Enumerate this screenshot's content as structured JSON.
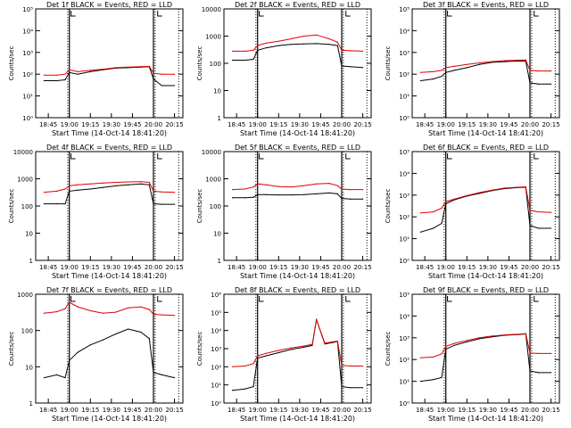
{
  "colors": {
    "events": "#000000",
    "lld": "#e00000",
    "axes": "#000000",
    "background": "#ffffff"
  },
  "x_ticks": [
    "18:45",
    "19:00",
    "19:15",
    "19:30",
    "19:45",
    "20:00",
    "20:15"
  ],
  "x_label": "Start Time (14-Oct-14 18:41:20)",
  "y_label": "Counts/sec",
  "chart_data": [
    {
      "type": "line",
      "title": "Det 1f BLACK = Events, RED = LLD",
      "ylog": true,
      "ylim": [
        1,
        100000
      ],
      "yticks": [
        [
          "10⁰",
          1
        ],
        [
          "10¹",
          10
        ],
        [
          "10²",
          100
        ],
        [
          "10³",
          1000
        ],
        [
          "10⁴",
          10000
        ],
        [
          "10⁵",
          100000
        ]
      ],
      "x": [
        18.7,
        18.85,
        18.95,
        19.0,
        19.1,
        19.25,
        19.4,
        19.55,
        19.7,
        19.85,
        19.95,
        20.0,
        20.1,
        20.25
      ],
      "series": [
        {
          "values": [
            50,
            50,
            55,
            120,
            100,
            130,
            160,
            190,
            200,
            210,
            220,
            60,
            30,
            30
          ]
        },
        {
          "values": [
            90,
            90,
            100,
            160,
            130,
            150,
            170,
            200,
            210,
            220,
            230,
            110,
            100,
            100
          ]
        }
      ]
    },
    {
      "type": "line",
      "title": "Det 2f BLACK = Events, RED = LLD",
      "ylog": true,
      "ylim": [
        1,
        10000
      ],
      "yticks": [
        [
          "1",
          1
        ],
        [
          "10",
          10
        ],
        [
          "100",
          100
        ],
        [
          "1000",
          1000
        ],
        [
          "10000",
          10000
        ]
      ],
      "x": [
        18.7,
        18.85,
        18.95,
        19.0,
        19.1,
        19.25,
        19.4,
        19.55,
        19.7,
        19.85,
        19.95,
        20.0,
        20.1,
        20.25
      ],
      "series": [
        {
          "values": [
            130,
            130,
            140,
            300,
            370,
            450,
            500,
            520,
            530,
            500,
            450,
            80,
            75,
            70
          ]
        },
        {
          "values": [
            280,
            280,
            300,
            450,
            550,
            650,
            800,
            1000,
            1100,
            800,
            600,
            300,
            290,
            280
          ]
        }
      ]
    },
    {
      "type": "line",
      "title": "Det 3f BLACK = Events, RED = LLD",
      "ylog": true,
      "ylim": [
        1,
        100000
      ],
      "yticks": [
        [
          "10⁰",
          1
        ],
        [
          "10¹",
          10
        ],
        [
          "10²",
          100
        ],
        [
          "10³",
          1000
        ],
        [
          "10⁴",
          10000
        ],
        [
          "10⁵",
          100000
        ]
      ],
      "x": [
        18.7,
        18.85,
        18.95,
        19.0,
        19.1,
        19.25,
        19.4,
        19.55,
        19.7,
        19.85,
        19.95,
        20.0,
        20.1,
        20.25
      ],
      "series": [
        {
          "values": [
            50,
            60,
            80,
            120,
            150,
            200,
            280,
            350,
            380,
            400,
            400,
            40,
            35,
            35
          ]
        },
        {
          "values": [
            120,
            130,
            150,
            200,
            230,
            280,
            330,
            380,
            420,
            440,
            450,
            150,
            140,
            140
          ]
        }
      ]
    },
    {
      "type": "line",
      "title": "Det 4f BLACK = Events, RED = LLD",
      "ylog": true,
      "ylim": [
        1,
        10000
      ],
      "yticks": [
        [
          "1",
          1
        ],
        [
          "10",
          10
        ],
        [
          "100",
          100
        ],
        [
          "1000",
          1000
        ],
        [
          "10000",
          10000
        ]
      ],
      "x": [
        18.7,
        18.85,
        18.95,
        19.0,
        19.1,
        19.25,
        19.4,
        19.55,
        19.7,
        19.85,
        19.95,
        20.0,
        20.1,
        20.25
      ],
      "series": [
        {
          "values": [
            120,
            120,
            120,
            350,
            380,
            420,
            480,
            550,
            600,
            650,
            600,
            120,
            115,
            115
          ]
        },
        {
          "values": [
            320,
            350,
            420,
            550,
            600,
            650,
            700,
            740,
            770,
            780,
            740,
            350,
            330,
            320
          ]
        }
      ]
    },
    {
      "type": "line",
      "title": "Det 5f BLACK = Events, RED = LLD",
      "ylog": true,
      "ylim": [
        1,
        10000
      ],
      "yticks": [
        [
          "1",
          1
        ],
        [
          "10",
          10
        ],
        [
          "100",
          100
        ],
        [
          "1000",
          1000
        ],
        [
          "10000",
          10000
        ]
      ],
      "x": [
        18.7,
        18.85,
        18.95,
        19.0,
        19.1,
        19.25,
        19.4,
        19.55,
        19.7,
        19.85,
        19.95,
        20.0,
        20.1,
        20.25
      ],
      "series": [
        {
          "values": [
            200,
            200,
            210,
            260,
            260,
            255,
            255,
            260,
            280,
            300,
            280,
            190,
            180,
            180
          ]
        },
        {
          "values": [
            400,
            420,
            500,
            650,
            600,
            520,
            500,
            560,
            650,
            680,
            560,
            420,
            400,
            400
          ]
        }
      ]
    },
    {
      "type": "line",
      "title": "Det 6f BLACK = Events, RED = LLD",
      "ylog": true,
      "ylim": [
        1,
        100000
      ],
      "yticks": [
        [
          "10⁰",
          1
        ],
        [
          "10¹",
          10
        ],
        [
          "10²",
          100
        ],
        [
          "10³",
          1000
        ],
        [
          "10⁴",
          10000
        ],
        [
          "10⁵",
          100000
        ]
      ],
      "x": [
        18.7,
        18.85,
        18.95,
        19.0,
        19.1,
        19.25,
        19.4,
        19.55,
        19.7,
        19.85,
        19.95,
        20.0,
        20.1,
        20.25
      ],
      "series": [
        {
          "values": [
            20,
            30,
            50,
            400,
            600,
            900,
            1200,
            1600,
            2000,
            2200,
            2300,
            40,
            30,
            30
          ]
        },
        {
          "values": [
            150,
            170,
            250,
            500,
            650,
            950,
            1300,
            1700,
            2100,
            2300,
            2400,
            200,
            170,
            160
          ]
        }
      ]
    },
    {
      "type": "line",
      "title": "Det 7f BLACK = Events, RED = LLD",
      "ylog": true,
      "ylim": [
        1,
        1000
      ],
      "yticks": [
        [
          "1",
          1
        ],
        [
          "10",
          10
        ],
        [
          "100",
          100
        ],
        [
          "1000",
          1000
        ]
      ],
      "x": [
        18.7,
        18.85,
        18.95,
        19.0,
        19.1,
        19.25,
        19.4,
        19.55,
        19.7,
        19.85,
        19.95,
        20.0,
        20.1,
        20.25
      ],
      "series": [
        {
          "values": [
            5,
            6,
            5,
            15,
            25,
            40,
            55,
            80,
            110,
            90,
            60,
            7,
            6,
            5
          ]
        },
        {
          "values": [
            300,
            330,
            400,
            600,
            450,
            350,
            300,
            320,
            420,
            450,
            380,
            280,
            270,
            260
          ]
        }
      ]
    },
    {
      "type": "line",
      "title": "Det 8f BLACK = Events, RED = LLD",
      "ylog": true,
      "ylim": [
        1,
        1000000
      ],
      "yticks": [
        [
          "10⁰",
          1
        ],
        [
          "10¹",
          10
        ],
        [
          "10²",
          100
        ],
        [
          "10³",
          1000
        ],
        [
          "10⁴",
          10000
        ],
        [
          "10⁵",
          100000
        ],
        [
          "10⁶",
          1000000
        ]
      ],
      "x": [
        18.7,
        18.85,
        18.95,
        19.0,
        19.1,
        19.25,
        19.4,
        19.55,
        19.65,
        19.7,
        19.8,
        19.9,
        19.95,
        20.0,
        20.1,
        20.25
      ],
      "series": [
        {
          "values": [
            5,
            6,
            8,
            300,
            400,
            600,
            900,
            1200,
            1500,
            40000,
            1800,
            2200,
            2500,
            8,
            7,
            7
          ]
        },
        {
          "values": [
            100,
            110,
            150,
            400,
            550,
            800,
            1100,
            1400,
            1700,
            40000,
            2000,
            2400,
            2600,
            120,
            110,
            110
          ]
        }
      ]
    },
    {
      "type": "line",
      "title": "Det 9f BLACK = Events, RED = LLD",
      "ylog": true,
      "ylim": [
        1,
        100000
      ],
      "yticks": [
        [
          "10⁰",
          1
        ],
        [
          "10¹",
          10
        ],
        [
          "10²",
          100
        ],
        [
          "10³",
          1000
        ],
        [
          "10⁴",
          10000
        ],
        [
          "10⁵",
          100000
        ]
      ],
      "x": [
        18.7,
        18.85,
        18.95,
        19.0,
        19.1,
        19.25,
        19.4,
        19.55,
        19.7,
        19.85,
        19.95,
        20.0,
        20.1,
        20.25
      ],
      "series": [
        {
          "values": [
            10,
            12,
            15,
            300,
            450,
            650,
            900,
            1100,
            1300,
            1400,
            1500,
            30,
            25,
            25
          ]
        },
        {
          "values": [
            120,
            130,
            180,
            400,
            550,
            750,
            1000,
            1200,
            1350,
            1450,
            1550,
            200,
            190,
            190
          ]
        }
      ]
    }
  ]
}
